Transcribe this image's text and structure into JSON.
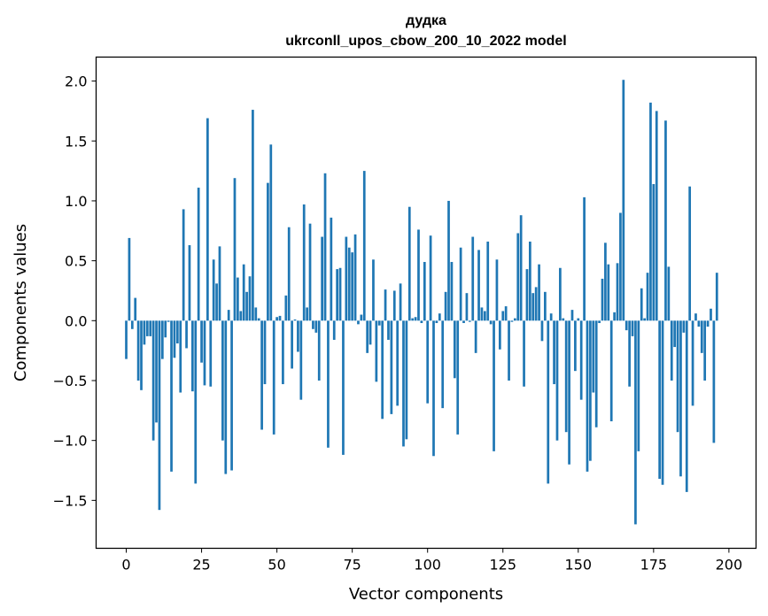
{
  "chart_data": {
    "type": "bar",
    "title": "дудка",
    "subtitle": "ukrconll_upos_cbow_200_10_2022 model",
    "xlabel": "Vector components",
    "ylabel": "Components values",
    "xlim": [
      -10,
      209
    ],
    "ylim": [
      -1.9,
      2.2
    ],
    "xticks": [
      0,
      25,
      50,
      75,
      100,
      125,
      150,
      175,
      200
    ],
    "yticks": [
      -1.5,
      -1.0,
      -0.5,
      0.0,
      0.5,
      1.0,
      1.5,
      2.0
    ],
    "ytick_labels": [
      "−1.5",
      "−1.0",
      "−0.5",
      "0.0",
      "0.5",
      "1.0",
      "1.5",
      "2.0"
    ],
    "bar_color": "#1f77b4",
    "grid": false,
    "values": [
      -0.32,
      0.69,
      -0.07,
      0.19,
      -0.5,
      -0.58,
      -0.2,
      -0.13,
      -0.13,
      -1.0,
      -0.85,
      -1.58,
      -0.32,
      -0.14,
      -0.01,
      -1.26,
      -0.31,
      -0.19,
      -0.6,
      0.93,
      -0.23,
      0.63,
      -0.59,
      -1.36,
      1.11,
      -0.35,
      -0.54,
      1.69,
      -0.55,
      0.51,
      0.31,
      0.62,
      -1.0,
      -1.28,
      0.09,
      -1.25,
      1.19,
      0.36,
      0.08,
      0.47,
      0.24,
      0.37,
      1.76,
      0.11,
      0.02,
      -0.91,
      -0.53,
      1.15,
      1.47,
      -0.95,
      0.03,
      0.04,
      -0.53,
      0.21,
      0.78,
      -0.4,
      0.01,
      -0.26,
      -0.66,
      0.97,
      0.11,
      0.81,
      -0.07,
      -0.1,
      -0.5,
      0.7,
      1.23,
      -1.06,
      0.86,
      -0.16,
      0.43,
      0.44,
      -1.12,
      0.7,
      0.61,
      0.57,
      0.72,
      -0.03,
      0.05,
      1.25,
      -0.27,
      -0.2,
      0.51,
      -0.51,
      -0.04,
      -0.82,
      0.26,
      -0.16,
      -0.78,
      0.25,
      -0.71,
      0.31,
      -1.05,
      -0.99,
      0.95,
      0.02,
      0.03,
      0.76,
      -0.02,
      0.49,
      -0.69,
      0.71,
      -1.13,
      -0.02,
      0.06,
      -0.73,
      0.24,
      1.0,
      0.49,
      -0.48,
      -0.95,
      0.61,
      -0.02,
      0.23,
      -0.01,
      0.7,
      -0.27,
      0.59,
      0.11,
      0.08,
      0.66,
      -0.03,
      -1.09,
      0.51,
      -0.24,
      0.08,
      0.12,
      -0.5,
      -0.01,
      0.02,
      0.73,
      0.88,
      -0.55,
      0.43,
      0.66,
      0.23,
      0.28,
      0.47,
      -0.17,
      0.24,
      -1.36,
      0.06,
      -0.53,
      -1.0,
      0.44,
      0.02,
      -0.93,
      -1.2,
      0.09,
      -0.42,
      0.02,
      -0.66,
      1.03,
      -1.26,
      -1.17,
      -0.6,
      -0.89,
      -0.02,
      0.35,
      0.65,
      0.47,
      -0.84,
      0.07,
      0.48,
      0.9,
      2.01,
      -0.08,
      -0.55,
      -0.13,
      -1.7,
      -1.09,
      0.27,
      0.02,
      0.4,
      1.82,
      1.14,
      1.75,
      -1.32,
      -1.37,
      1.67,
      0.45,
      -0.5,
      -0.22,
      -0.93,
      -1.3,
      -0.1,
      -1.43,
      1.12,
      -0.71,
      0.06,
      -0.05,
      -0.27,
      -0.5,
      -0.05,
      0.1,
      -1.02,
      0.4
    ]
  }
}
